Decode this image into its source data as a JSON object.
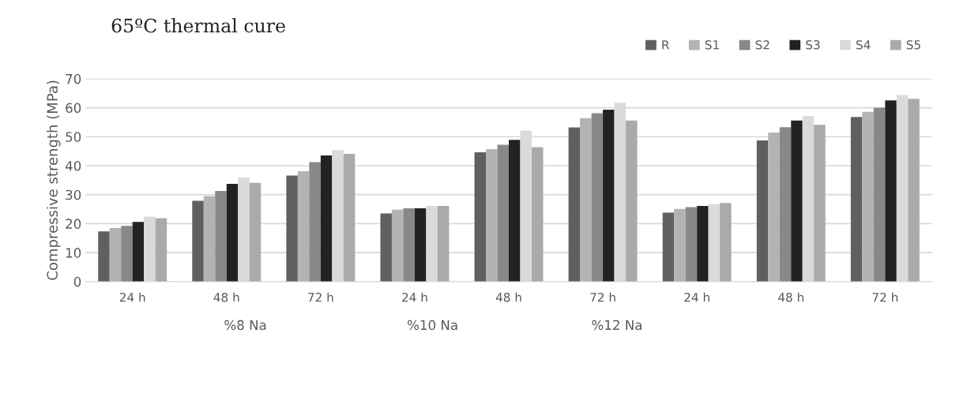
{
  "chart_data": {
    "type": "bar",
    "title": "65ºC thermal cure",
    "ylabel": "Compressive strength (MPa)",
    "categories": [
      "24 h",
      "48 h",
      "72 h",
      "24 h",
      "48 h",
      "72 h",
      "24 h",
      "48 h",
      "72 h"
    ],
    "annotations": [
      "%8 Na",
      "%10 Na",
      "%12 Na"
    ],
    "series": [
      {
        "name": "R",
        "color": "#606060",
        "values": [
          17.3,
          27.9,
          36.6,
          23.5,
          44.6,
          53.2,
          23.8,
          48.7,
          56.8
        ]
      },
      {
        "name": "S1",
        "color": "#b3b3b3",
        "values": [
          18.5,
          29.5,
          38.1,
          24.8,
          45.7,
          56.4,
          25.1,
          51.4,
          58.6
        ]
      },
      {
        "name": "S2",
        "color": "#888888",
        "values": [
          19.2,
          31.3,
          41.2,
          25.3,
          47.2,
          58.1,
          25.7,
          53.3,
          60.0
        ]
      },
      {
        "name": "S3",
        "color": "#222222",
        "values": [
          20.6,
          33.7,
          43.5,
          25.3,
          48.9,
          59.3,
          26.1,
          55.6,
          62.5
        ]
      },
      {
        "name": "S4",
        "color": "#dadada",
        "values": [
          22.4,
          35.9,
          45.4,
          26.1,
          52.1,
          61.7,
          26.7,
          57.1,
          64.4
        ]
      },
      {
        "name": "S5",
        "color": "#aaaaaa",
        "values": [
          21.9,
          34.1,
          44.1,
          26.1,
          46.4,
          55.6,
          27.1,
          54.1,
          63.1
        ]
      }
    ],
    "ylim": [
      0,
      70
    ],
    "yticks": [
      0,
      10,
      20,
      30,
      40,
      50,
      60,
      70
    ],
    "grid": "y",
    "legend": "top right"
  }
}
